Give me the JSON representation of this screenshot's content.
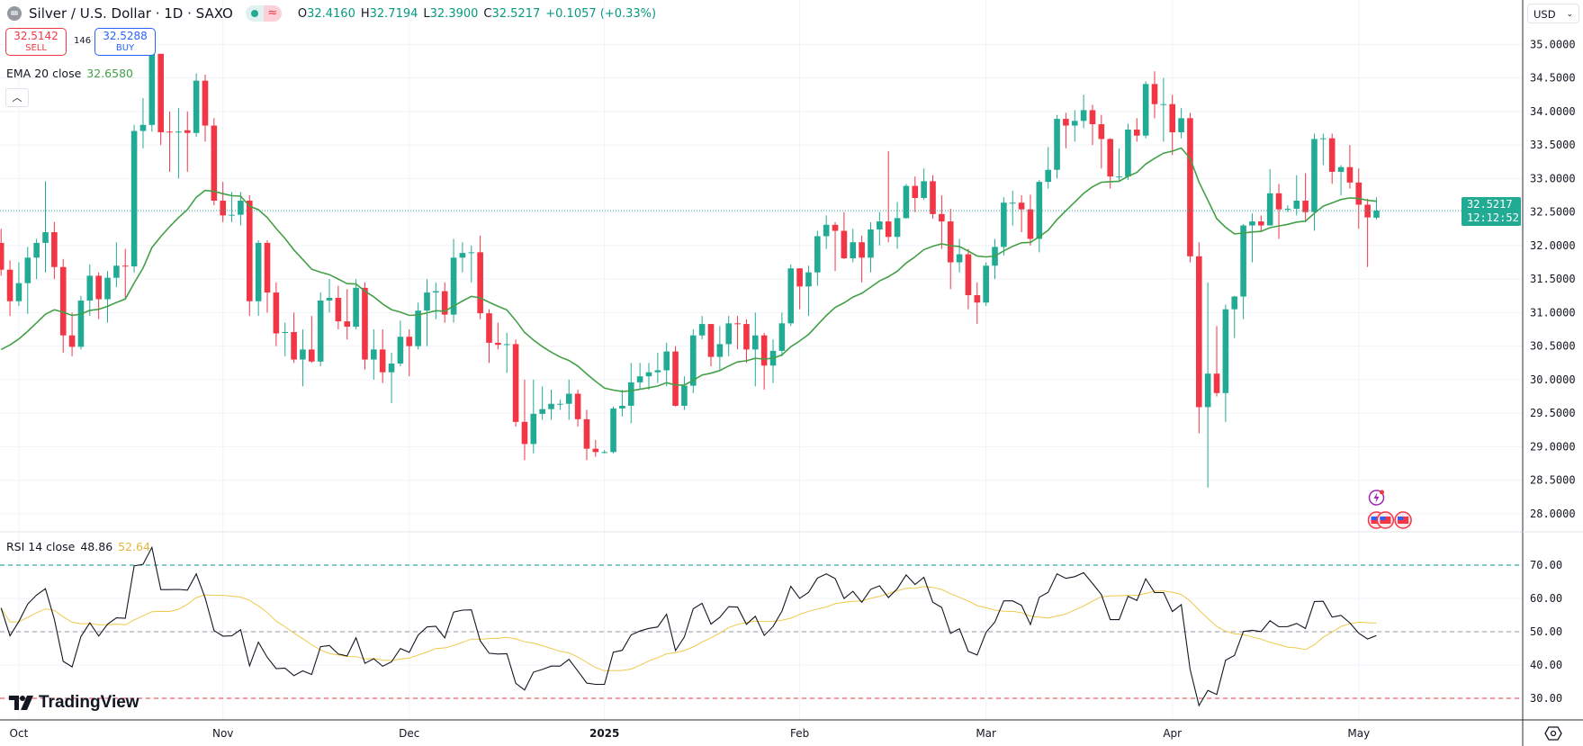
{
  "header": {
    "title": "Silver / U.S. Dollar · 1D · SAXO",
    "ohlc": {
      "o_label": "O",
      "o": "32.4160",
      "h_label": "H",
      "h": "32.7194",
      "l_label": "L",
      "l": "32.3900",
      "c_label": "C",
      "c": "32.5217",
      "change": "+0.1057 (+0.33%)"
    },
    "market_status_icon": "green-dot-icon",
    "delay_icon": "wave-icon"
  },
  "trade": {
    "sell_price": "32.5142",
    "sell_label": "SELL",
    "spread": "146",
    "buy_price": "32.5288",
    "buy_label": "BUY"
  },
  "indicators": {
    "ema": {
      "label": "EMA 20 close",
      "value": "32.6580",
      "color": "#43a047",
      "period": 20,
      "start": 30.45
    },
    "rsi": {
      "label": "RSI 14 close",
      "value": "48.86",
      "ma_value": "52.64",
      "color": "#131722",
      "ma_color": "#f0c94b"
    }
  },
  "currency": "USD",
  "last_price": {
    "price": "32.5217",
    "countdown": "12:12:52",
    "value": 32.5217
  },
  "colors": {
    "up": "#22ab94",
    "down": "#f23645",
    "grid": "#f0f3fa"
  },
  "logo": "TradingView",
  "chart_data": {
    "type": "candlestick",
    "title": "Silver / U.S. Dollar · 1D · SAXO",
    "ylim": [
      27.6,
      35.6
    ],
    "price_ticks": [
      "35.0000",
      "34.5000",
      "34.0000",
      "33.5000",
      "33.0000",
      "32.5000",
      "32.0000",
      "31.5000",
      "31.0000",
      "30.5000",
      "30.0000",
      "29.5000",
      "29.0000",
      "28.5000",
      "28.0000"
    ],
    "rsi_ticks": [
      "70.00",
      "60.00",
      "50.00",
      "40.00",
      "30.00"
    ],
    "rsi_levels": {
      "upper": 70,
      "middle": 50,
      "lower": 30
    },
    "date_labels": [
      {
        "label": "Oct",
        "index": 2
      },
      {
        "label": "Nov",
        "index": 25
      },
      {
        "label": "Dec",
        "index": 46
      },
      {
        "label": "2025",
        "index": 68
      },
      {
        "label": "Feb",
        "index": 90
      },
      {
        "label": "Mar",
        "index": 111
      },
      {
        "label": "Apr",
        "index": 132
      },
      {
        "label": "May",
        "index": 153
      }
    ],
    "candles_ohlc": [
      [
        32.04,
        32.25,
        31.55,
        31.64
      ],
      [
        31.64,
        31.78,
        30.95,
        31.17
      ],
      [
        31.17,
        31.75,
        31.1,
        31.44
      ],
      [
        31.44,
        31.98,
        30.98,
        31.82
      ],
      [
        31.82,
        32.1,
        31.5,
        32.04
      ],
      [
        32.04,
        32.96,
        31.6,
        32.2
      ],
      [
        32.2,
        32.35,
        31.5,
        31.68
      ],
      [
        31.68,
        31.8,
        30.4,
        30.66
      ],
      [
        30.66,
        31.0,
        30.35,
        30.49
      ],
      [
        30.49,
        31.25,
        30.45,
        31.18
      ],
      [
        31.18,
        31.72,
        30.95,
        31.55
      ],
      [
        31.55,
        31.6,
        30.9,
        31.2
      ],
      [
        31.2,
        31.62,
        30.85,
        31.52
      ],
      [
        31.52,
        32.05,
        31.38,
        31.7
      ],
      [
        31.7,
        31.95,
        31.2,
        31.69
      ],
      [
        31.69,
        33.8,
        31.6,
        33.71
      ],
      [
        33.71,
        34.2,
        33.45,
        33.8
      ],
      [
        33.8,
        34.88,
        33.7,
        34.86
      ],
      [
        34.86,
        34.86,
        33.5,
        33.69
      ],
      [
        33.7,
        34.0,
        33.1,
        33.69
      ],
      [
        33.69,
        34.05,
        33.0,
        33.7
      ],
      [
        33.72,
        34.0,
        33.1,
        33.68
      ],
      [
        33.68,
        34.57,
        33.62,
        34.46
      ],
      [
        34.46,
        34.55,
        33.55,
        33.79
      ],
      [
        33.79,
        33.9,
        32.6,
        32.67
      ],
      [
        32.67,
        32.95,
        32.35,
        32.45
      ],
      [
        32.46,
        32.8,
        32.35,
        32.46
      ],
      [
        32.46,
        32.8,
        32.3,
        32.67
      ],
      [
        32.67,
        32.75,
        30.95,
        31.17
      ],
      [
        31.17,
        32.08,
        30.95,
        32.04
      ],
      [
        32.04,
        32.08,
        31.0,
        31.3
      ],
      [
        31.3,
        31.45,
        30.5,
        30.69
      ],
      [
        30.7,
        30.85,
        30.35,
        30.71
      ],
      [
        30.71,
        31.0,
        30.25,
        30.3
      ],
      [
        30.3,
        30.75,
        29.9,
        30.45
      ],
      [
        30.45,
        30.95,
        30.25,
        30.27
      ],
      [
        30.27,
        31.3,
        30.2,
        31.18
      ],
      [
        31.18,
        31.5,
        31.0,
        31.22
      ],
      [
        31.22,
        31.4,
        30.75,
        30.87
      ],
      [
        30.87,
        31.35,
        30.6,
        30.79
      ],
      [
        30.79,
        31.5,
        30.75,
        31.37
      ],
      [
        31.37,
        31.45,
        30.15,
        30.3
      ],
      [
        30.3,
        30.75,
        30.0,
        30.45
      ],
      [
        30.45,
        30.75,
        29.95,
        30.11
      ],
      [
        30.11,
        30.4,
        29.65,
        30.24
      ],
      [
        30.24,
        30.88,
        30.2,
        30.64
      ],
      [
        30.64,
        30.75,
        30.05,
        30.5
      ],
      [
        30.5,
        31.15,
        30.45,
        31.03
      ],
      [
        31.03,
        31.5,
        30.5,
        31.3
      ],
      [
        31.3,
        31.45,
        30.9,
        31.32
      ],
      [
        31.32,
        31.45,
        30.85,
        30.97
      ],
      [
        30.97,
        32.1,
        30.85,
        31.82
      ],
      [
        31.82,
        32.05,
        31.6,
        31.89
      ],
      [
        31.9,
        32.0,
        31.45,
        31.9
      ],
      [
        31.9,
        32.15,
        30.9,
        30.99
      ],
      [
        30.99,
        31.05,
        30.25,
        30.55
      ],
      [
        30.55,
        30.85,
        30.45,
        30.52
      ],
      [
        30.53,
        30.7,
        30.1,
        30.53
      ],
      [
        30.53,
        30.6,
        29.3,
        29.37
      ],
      [
        29.37,
        30.0,
        28.8,
        29.04
      ],
      [
        29.04,
        30.0,
        28.9,
        29.49
      ],
      [
        29.49,
        29.9,
        29.4,
        29.56
      ],
      [
        29.56,
        29.85,
        29.4,
        29.64
      ],
      [
        29.64,
        29.7,
        29.55,
        29.64
      ],
      [
        29.64,
        30.0,
        29.4,
        29.79
      ],
      [
        29.79,
        29.85,
        29.3,
        29.41
      ],
      [
        29.41,
        29.55,
        28.8,
        28.97
      ],
      [
        28.97,
        29.1,
        28.85,
        28.92
      ],
      [
        28.92,
        28.95,
        28.9,
        28.92
      ],
      [
        28.92,
        29.6,
        28.9,
        29.57
      ],
      [
        29.57,
        29.85,
        29.45,
        29.61
      ],
      [
        29.61,
        30.25,
        29.35,
        29.96
      ],
      [
        29.96,
        30.25,
        29.85,
        30.05
      ],
      [
        30.05,
        30.25,
        29.85,
        30.11
      ],
      [
        30.11,
        30.4,
        29.95,
        30.14
      ],
      [
        30.14,
        30.55,
        29.9,
        30.42
      ],
      [
        30.42,
        30.5,
        29.6,
        29.61
      ],
      [
        29.61,
        30.05,
        29.55,
        29.91
      ],
      [
        29.91,
        30.75,
        29.8,
        30.66
      ],
      [
        30.66,
        30.95,
        30.6,
        30.83
      ],
      [
        30.83,
        30.83,
        30.2,
        30.34
      ],
      [
        30.34,
        30.8,
        30.15,
        30.53
      ],
      [
        30.53,
        30.95,
        30.35,
        30.84
      ],
      [
        30.84,
        30.95,
        30.45,
        30.83
      ],
      [
        30.83,
        30.9,
        30.25,
        30.45
      ],
      [
        30.45,
        31.0,
        29.9,
        30.66
      ],
      [
        30.66,
        30.7,
        29.85,
        30.21
      ],
      [
        30.21,
        30.6,
        29.95,
        30.43
      ],
      [
        30.43,
        31.0,
        30.35,
        30.84
      ],
      [
        30.84,
        31.72,
        30.8,
        31.66
      ],
      [
        31.66,
        31.66,
        31.05,
        31.39
      ],
      [
        31.39,
        31.7,
        30.95,
        31.6
      ],
      [
        31.6,
        32.22,
        31.4,
        32.14
      ],
      [
        32.14,
        32.45,
        31.95,
        32.31
      ],
      [
        32.31,
        32.35,
        31.62,
        32.22
      ],
      [
        32.22,
        32.5,
        31.8,
        31.81
      ],
      [
        31.81,
        32.25,
        31.75,
        32.05
      ],
      [
        32.05,
        32.15,
        31.45,
        31.82
      ],
      [
        31.82,
        32.35,
        31.6,
        32.24
      ],
      [
        32.24,
        32.5,
        32.0,
        32.36
      ],
      [
        32.36,
        33.41,
        32.05,
        32.13
      ],
      [
        32.13,
        32.65,
        31.95,
        32.41
      ],
      [
        32.41,
        32.92,
        32.4,
        32.89
      ],
      [
        32.89,
        33.03,
        32.5,
        32.71
      ],
      [
        32.71,
        33.15,
        32.68,
        32.96
      ],
      [
        32.96,
        33.05,
        32.4,
        32.47
      ],
      [
        32.47,
        32.75,
        31.95,
        32.36
      ],
      [
        32.36,
        32.55,
        31.35,
        31.75
      ],
      [
        31.75,
        32.1,
        31.6,
        31.87
      ],
      [
        31.87,
        31.95,
        31.05,
        31.26
      ],
      [
        31.26,
        31.45,
        30.83,
        31.15
      ],
      [
        31.15,
        31.75,
        31.1,
        31.7
      ],
      [
        31.7,
        32.1,
        31.5,
        31.98
      ],
      [
        31.98,
        32.72,
        31.85,
        32.64
      ],
      [
        32.64,
        32.82,
        32.3,
        32.64
      ],
      [
        32.64,
        32.75,
        32.2,
        32.54
      ],
      [
        32.54,
        32.76,
        32.0,
        32.1
      ],
      [
        32.1,
        32.98,
        31.9,
        32.95
      ],
      [
        32.95,
        33.47,
        32.85,
        33.13
      ],
      [
        33.13,
        33.95,
        33.0,
        33.89
      ],
      [
        33.89,
        33.98,
        33.45,
        33.79
      ],
      [
        33.79,
        34.02,
        33.55,
        33.86
      ],
      [
        33.86,
        34.25,
        33.75,
        34.02
      ],
      [
        34.02,
        34.1,
        33.5,
        33.81
      ],
      [
        33.81,
        33.95,
        33.15,
        33.59
      ],
      [
        33.59,
        33.6,
        32.85,
        33.03
      ],
      [
        33.03,
        33.45,
        32.95,
        33.03
      ],
      [
        33.03,
        33.82,
        32.98,
        33.73
      ],
      [
        33.73,
        33.9,
        33.55,
        33.64
      ],
      [
        33.64,
        34.45,
        33.6,
        34.41
      ],
      [
        34.41,
        34.6,
        33.9,
        34.11
      ],
      [
        34.11,
        34.5,
        33.55,
        34.11
      ],
      [
        34.11,
        34.25,
        33.35,
        33.69
      ],
      [
        33.69,
        34.05,
        33.6,
        33.9
      ],
      [
        33.9,
        33.98,
        31.75,
        31.84
      ],
      [
        31.84,
        32.05,
        29.2,
        29.59
      ],
      [
        29.59,
        31.45,
        28.39,
        30.09
      ],
      [
        30.09,
        30.8,
        29.75,
        29.8
      ],
      [
        29.8,
        31.12,
        29.37,
        31.05
      ],
      [
        31.05,
        31.25,
        30.62,
        31.24
      ],
      [
        31.24,
        32.32,
        30.9,
        32.3
      ],
      [
        32.3,
        32.48,
        31.75,
        32.36
      ],
      [
        32.36,
        32.45,
        32.2,
        32.3
      ],
      [
        32.3,
        33.14,
        32.3,
        32.78
      ],
      [
        32.78,
        32.92,
        32.1,
        32.54
      ],
      [
        32.54,
        32.6,
        32.5,
        32.55
      ],
      [
        32.55,
        33.05,
        32.45,
        32.67
      ],
      [
        32.67,
        33.08,
        32.35,
        32.5
      ],
      [
        32.5,
        33.67,
        32.22,
        33.59
      ],
      [
        33.59,
        33.67,
        33.2,
        33.6
      ],
      [
        33.6,
        33.67,
        32.92,
        33.1
      ],
      [
        33.1,
        33.2,
        32.75,
        33.17
      ],
      [
        33.17,
        33.5,
        32.85,
        32.94
      ],
      [
        32.94,
        33.15,
        32.25,
        32.61
      ],
      [
        32.61,
        32.7,
        31.68,
        32.42
      ],
      [
        32.416,
        32.7194,
        32.39,
        32.5217
      ]
    ],
    "events": [
      {
        "type": "earnings-lightning",
        "index": 155
      },
      {
        "type": "us-economic-event",
        "index": 155
      },
      {
        "type": "us-economic-event",
        "index": 156
      },
      {
        "type": "us-economic-event",
        "index": 158
      }
    ]
  }
}
